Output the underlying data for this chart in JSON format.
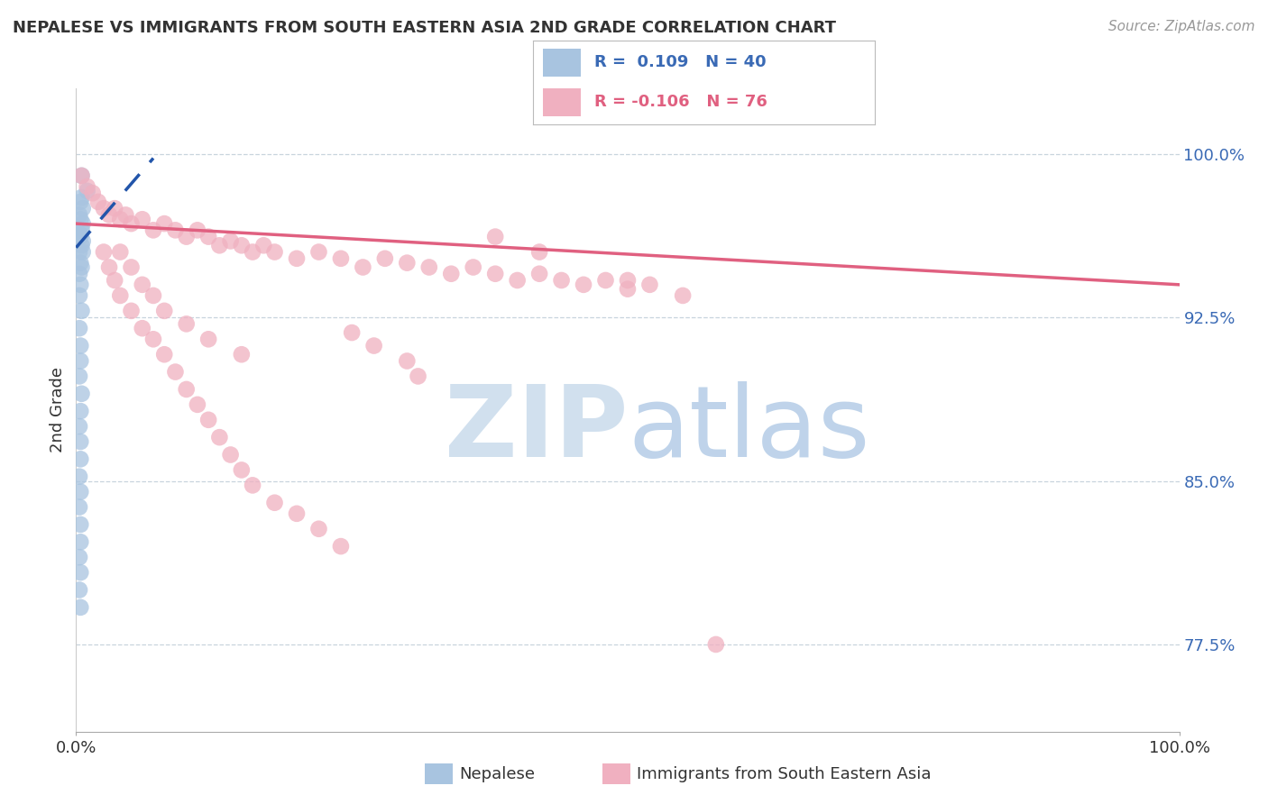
{
  "title": "NEPALESE VS IMMIGRANTS FROM SOUTH EASTERN ASIA 2ND GRADE CORRELATION CHART",
  "source": "Source: ZipAtlas.com",
  "ylabel": "2nd Grade",
  "ytick_values": [
    0.775,
    0.85,
    0.925,
    1.0
  ],
  "ytick_labels": [
    "77.5%",
    "85.0%",
    "92.5%",
    "100.0%"
  ],
  "xlim": [
    0.0,
    1.0
  ],
  "ylim": [
    0.735,
    1.03
  ],
  "blue_color": "#a8c4e0",
  "pink_color": "#f0b0c0",
  "blue_line_color": "#2255aa",
  "pink_line_color": "#e06080",
  "grid_color": "#c8d4dd",
  "background_color": "#ffffff",
  "blue_scatter": [
    [
      0.005,
      0.99
    ],
    [
      0.01,
      0.983
    ],
    [
      0.004,
      0.978
    ],
    [
      0.003,
      0.972
    ],
    [
      0.006,
      0.968
    ],
    [
      0.004,
      0.963
    ],
    [
      0.005,
      0.958
    ],
    [
      0.003,
      0.963
    ],
    [
      0.004,
      0.97
    ],
    [
      0.006,
      0.975
    ],
    [
      0.005,
      0.98
    ],
    [
      0.003,
      0.955
    ],
    [
      0.004,
      0.95
    ],
    [
      0.006,
      0.96
    ],
    [
      0.005,
      0.965
    ],
    [
      0.003,
      0.945
    ],
    [
      0.004,
      0.94
    ],
    [
      0.005,
      0.948
    ],
    [
      0.006,
      0.955
    ],
    [
      0.004,
      0.962
    ],
    [
      0.003,
      0.935
    ],
    [
      0.005,
      0.928
    ],
    [
      0.003,
      0.92
    ],
    [
      0.004,
      0.912
    ],
    [
      0.004,
      0.905
    ],
    [
      0.003,
      0.898
    ],
    [
      0.005,
      0.89
    ],
    [
      0.004,
      0.882
    ],
    [
      0.003,
      0.875
    ],
    [
      0.004,
      0.868
    ],
    [
      0.004,
      0.86
    ],
    [
      0.003,
      0.852
    ],
    [
      0.004,
      0.845
    ],
    [
      0.003,
      0.838
    ],
    [
      0.004,
      0.83
    ],
    [
      0.004,
      0.822
    ],
    [
      0.003,
      0.815
    ],
    [
      0.004,
      0.808
    ],
    [
      0.003,
      0.8
    ],
    [
      0.004,
      0.792
    ]
  ],
  "pink_scatter": [
    [
      0.005,
      0.99
    ],
    [
      0.01,
      0.985
    ],
    [
      0.015,
      0.982
    ],
    [
      0.02,
      0.978
    ],
    [
      0.025,
      0.975
    ],
    [
      0.03,
      0.972
    ],
    [
      0.035,
      0.975
    ],
    [
      0.04,
      0.97
    ],
    [
      0.045,
      0.972
    ],
    [
      0.05,
      0.968
    ],
    [
      0.06,
      0.97
    ],
    [
      0.07,
      0.965
    ],
    [
      0.08,
      0.968
    ],
    [
      0.09,
      0.965
    ],
    [
      0.1,
      0.962
    ],
    [
      0.11,
      0.965
    ],
    [
      0.12,
      0.962
    ],
    [
      0.13,
      0.958
    ],
    [
      0.14,
      0.96
    ],
    [
      0.15,
      0.958
    ],
    [
      0.16,
      0.955
    ],
    [
      0.17,
      0.958
    ],
    [
      0.18,
      0.955
    ],
    [
      0.2,
      0.952
    ],
    [
      0.22,
      0.955
    ],
    [
      0.24,
      0.952
    ],
    [
      0.26,
      0.948
    ],
    [
      0.28,
      0.952
    ],
    [
      0.3,
      0.95
    ],
    [
      0.32,
      0.948
    ],
    [
      0.34,
      0.945
    ],
    [
      0.36,
      0.948
    ],
    [
      0.38,
      0.945
    ],
    [
      0.4,
      0.942
    ],
    [
      0.42,
      0.945
    ],
    [
      0.44,
      0.942
    ],
    [
      0.46,
      0.94
    ],
    [
      0.48,
      0.942
    ],
    [
      0.5,
      0.938
    ],
    [
      0.52,
      0.94
    ],
    [
      0.025,
      0.955
    ],
    [
      0.03,
      0.948
    ],
    [
      0.035,
      0.942
    ],
    [
      0.04,
      0.935
    ],
    [
      0.05,
      0.928
    ],
    [
      0.06,
      0.92
    ],
    [
      0.07,
      0.915
    ],
    [
      0.08,
      0.908
    ],
    [
      0.09,
      0.9
    ],
    [
      0.1,
      0.892
    ],
    [
      0.11,
      0.885
    ],
    [
      0.12,
      0.878
    ],
    [
      0.13,
      0.87
    ],
    [
      0.14,
      0.862
    ],
    [
      0.15,
      0.855
    ],
    [
      0.16,
      0.848
    ],
    [
      0.18,
      0.84
    ],
    [
      0.2,
      0.835
    ],
    [
      0.22,
      0.828
    ],
    [
      0.24,
      0.82
    ],
    [
      0.04,
      0.955
    ],
    [
      0.05,
      0.948
    ],
    [
      0.06,
      0.94
    ],
    [
      0.07,
      0.935
    ],
    [
      0.08,
      0.928
    ],
    [
      0.1,
      0.922
    ],
    [
      0.12,
      0.915
    ],
    [
      0.15,
      0.908
    ],
    [
      0.25,
      0.918
    ],
    [
      0.27,
      0.912
    ],
    [
      0.3,
      0.905
    ],
    [
      0.31,
      0.898
    ],
    [
      0.38,
      0.962
    ],
    [
      0.42,
      0.955
    ],
    [
      0.5,
      0.942
    ],
    [
      0.55,
      0.935
    ],
    [
      0.58,
      0.775
    ]
  ]
}
